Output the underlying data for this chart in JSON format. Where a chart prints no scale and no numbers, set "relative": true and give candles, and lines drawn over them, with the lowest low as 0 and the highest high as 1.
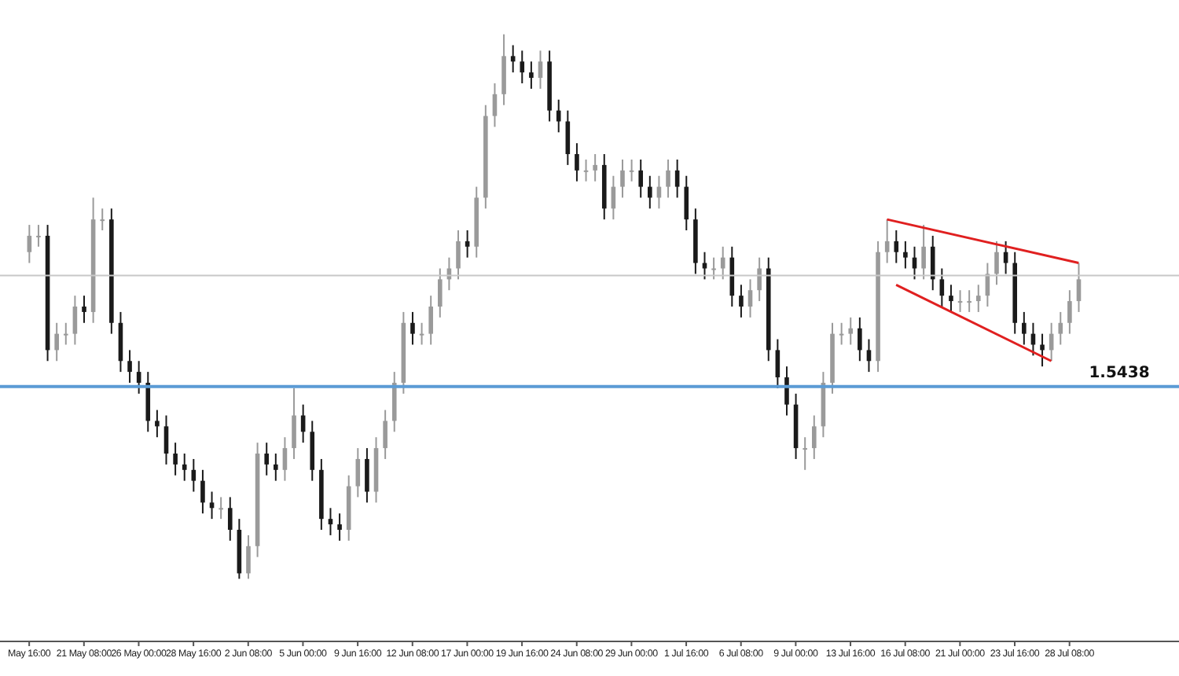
{
  "chart_data": {
    "type": "candlestick",
    "relative": true,
    "categories": [
      "May 16:00",
      null,
      null,
      null,
      null,
      null,
      "21 May 08:00",
      null,
      null,
      null,
      null,
      null,
      "26 May 00:00",
      null,
      null,
      null,
      null,
      null,
      "28 May 16:00",
      null,
      null,
      null,
      null,
      null,
      "2 Jun 08:00",
      null,
      null,
      null,
      null,
      null,
      "5 Jun 00:00",
      null,
      null,
      null,
      null,
      null,
      "9 Jun 16:00",
      null,
      null,
      null,
      null,
      null,
      "12 Jun 08:00",
      null,
      null,
      null,
      null,
      null,
      "17 Jun 00:00",
      null,
      null,
      null,
      null,
      null,
      "19 Jun 16:00",
      null,
      null,
      null,
      null,
      null,
      "24 Jun 08:00",
      null,
      null,
      null,
      null,
      null,
      "29 Jun 00:00",
      null,
      null,
      null,
      null,
      null,
      "1 Jul 16:00",
      null,
      null,
      null,
      null,
      null,
      "6 Jul 08:00",
      null,
      null,
      null,
      null,
      null,
      "9 Jul 00:00",
      null,
      null,
      null,
      null,
      null,
      "13 Jul 16:00",
      null,
      null,
      null,
      null,
      null,
      "16 Jul 08:00",
      null,
      null,
      null,
      null,
      null,
      "21 Jul 00:00",
      null,
      null,
      null,
      null,
      null,
      "23 Jul 16:00",
      null,
      null,
      null,
      null,
      null,
      "28 Jul 08:00",
      null
    ],
    "ohlc": [
      [
        0.6,
        0.65,
        0.58,
        0.63
      ],
      [
        0.63,
        0.65,
        0.61,
        0.63
      ],
      [
        0.63,
        0.65,
        0.4,
        0.42
      ],
      [
        0.42,
        0.47,
        0.4,
        0.45
      ],
      [
        0.45,
        0.47,
        0.43,
        0.45
      ],
      [
        0.45,
        0.52,
        0.43,
        0.5
      ],
      [
        0.5,
        0.52,
        0.47,
        0.49
      ],
      [
        0.49,
        0.7,
        0.47,
        0.66
      ],
      [
        0.66,
        0.68,
        0.64,
        0.66
      ],
      [
        0.66,
        0.68,
        0.45,
        0.47
      ],
      [
        0.47,
        0.49,
        0.38,
        0.4
      ],
      [
        0.4,
        0.42,
        0.36,
        0.38
      ],
      [
        0.38,
        0.4,
        0.34,
        0.36
      ],
      [
        0.36,
        0.38,
        0.27,
        0.29
      ],
      [
        0.29,
        0.31,
        0.26,
        0.28
      ],
      [
        0.28,
        0.3,
        0.21,
        0.23
      ],
      [
        0.23,
        0.25,
        0.19,
        0.21
      ],
      [
        0.21,
        0.23,
        0.18,
        0.2
      ],
      [
        0.2,
        0.22,
        0.16,
        0.18
      ],
      [
        0.18,
        0.2,
        0.12,
        0.14
      ],
      [
        0.14,
        0.16,
        0.11,
        0.13
      ],
      [
        0.13,
        0.15,
        0.11,
        0.13
      ],
      [
        0.13,
        0.15,
        0.07,
        0.09
      ],
      [
        0.09,
        0.11,
        0.0,
        0.01
      ],
      [
        0.01,
        0.08,
        0.0,
        0.06
      ],
      [
        0.06,
        0.25,
        0.04,
        0.23
      ],
      [
        0.23,
        0.25,
        0.19,
        0.21
      ],
      [
        0.21,
        0.23,
        0.18,
        0.2
      ],
      [
        0.2,
        0.26,
        0.18,
        0.24
      ],
      [
        0.24,
        0.35,
        0.22,
        0.3
      ],
      [
        0.3,
        0.32,
        0.25,
        0.27
      ],
      [
        0.27,
        0.29,
        0.18,
        0.2
      ],
      [
        0.2,
        0.22,
        0.09,
        0.11
      ],
      [
        0.11,
        0.13,
        0.08,
        0.1
      ],
      [
        0.1,
        0.12,
        0.07,
        0.09
      ],
      [
        0.09,
        0.19,
        0.07,
        0.17
      ],
      [
        0.17,
        0.24,
        0.15,
        0.22
      ],
      [
        0.22,
        0.24,
        0.14,
        0.16
      ],
      [
        0.16,
        0.26,
        0.14,
        0.24
      ],
      [
        0.24,
        0.31,
        0.22,
        0.29
      ],
      [
        0.29,
        0.38,
        0.27,
        0.36
      ],
      [
        0.36,
        0.49,
        0.34,
        0.47
      ],
      [
        0.47,
        0.49,
        0.43,
        0.45
      ],
      [
        0.45,
        0.47,
        0.43,
        0.45
      ],
      [
        0.45,
        0.52,
        0.43,
        0.5
      ],
      [
        0.5,
        0.57,
        0.48,
        0.55
      ],
      [
        0.55,
        0.59,
        0.53,
        0.57
      ],
      [
        0.57,
        0.64,
        0.55,
        0.62
      ],
      [
        0.62,
        0.64,
        0.59,
        0.61
      ],
      [
        0.61,
        0.72,
        0.59,
        0.7
      ],
      [
        0.7,
        0.87,
        0.68,
        0.85
      ],
      [
        0.85,
        0.91,
        0.83,
        0.89
      ],
      [
        0.89,
        1.0,
        0.87,
        0.96
      ],
      [
        0.96,
        0.98,
        0.93,
        0.95
      ],
      [
        0.95,
        0.97,
        0.91,
        0.93
      ],
      [
        0.93,
        0.95,
        0.9,
        0.92
      ],
      [
        0.92,
        0.97,
        0.9,
        0.95
      ],
      [
        0.95,
        0.97,
        0.84,
        0.86
      ],
      [
        0.86,
        0.88,
        0.82,
        0.84
      ],
      [
        0.84,
        0.86,
        0.76,
        0.78
      ],
      [
        0.78,
        0.8,
        0.73,
        0.75
      ],
      [
        0.75,
        0.77,
        0.73,
        0.75
      ],
      [
        0.75,
        0.78,
        0.73,
        0.76
      ],
      [
        0.76,
        0.78,
        0.66,
        0.68
      ],
      [
        0.68,
        0.74,
        0.66,
        0.72
      ],
      [
        0.72,
        0.77,
        0.7,
        0.75
      ],
      [
        0.75,
        0.77,
        0.73,
        0.75
      ],
      [
        0.75,
        0.77,
        0.7,
        0.72
      ],
      [
        0.72,
        0.74,
        0.68,
        0.7
      ],
      [
        0.7,
        0.74,
        0.68,
        0.72
      ],
      [
        0.72,
        0.77,
        0.7,
        0.75
      ],
      [
        0.75,
        0.77,
        0.7,
        0.72
      ],
      [
        0.72,
        0.74,
        0.64,
        0.66
      ],
      [
        0.66,
        0.68,
        0.56,
        0.58
      ],
      [
        0.58,
        0.6,
        0.55,
        0.57
      ],
      [
        0.57,
        0.59,
        0.55,
        0.57
      ],
      [
        0.57,
        0.61,
        0.55,
        0.59
      ],
      [
        0.59,
        0.61,
        0.5,
        0.52
      ],
      [
        0.52,
        0.54,
        0.48,
        0.5
      ],
      [
        0.5,
        0.55,
        0.48,
        0.53
      ],
      [
        0.53,
        0.59,
        0.51,
        0.57
      ],
      [
        0.57,
        0.59,
        0.4,
        0.42
      ],
      [
        0.42,
        0.44,
        0.35,
        0.37
      ],
      [
        0.37,
        0.39,
        0.3,
        0.32
      ],
      [
        0.32,
        0.34,
        0.22,
        0.24
      ],
      [
        0.24,
        0.26,
        0.2,
        0.24
      ],
      [
        0.24,
        0.3,
        0.22,
        0.28
      ],
      [
        0.28,
        0.38,
        0.26,
        0.36
      ],
      [
        0.36,
        0.47,
        0.34,
        0.45
      ],
      [
        0.45,
        0.47,
        0.43,
        0.45
      ],
      [
        0.45,
        0.48,
        0.43,
        0.46
      ],
      [
        0.46,
        0.48,
        0.4,
        0.42
      ],
      [
        0.42,
        0.44,
        0.38,
        0.4
      ],
      [
        0.4,
        0.62,
        0.38,
        0.6
      ],
      [
        0.6,
        0.66,
        0.58,
        0.62
      ],
      [
        0.62,
        0.64,
        0.58,
        0.6
      ],
      [
        0.6,
        0.62,
        0.57,
        0.59
      ],
      [
        0.59,
        0.61,
        0.55,
        0.57
      ],
      [
        0.57,
        0.65,
        0.55,
        0.61
      ],
      [
        0.61,
        0.63,
        0.53,
        0.55
      ],
      [
        0.55,
        0.57,
        0.5,
        0.52
      ],
      [
        0.52,
        0.54,
        0.49,
        0.51
      ],
      [
        0.51,
        0.53,
        0.49,
        0.51
      ],
      [
        0.51,
        0.53,
        0.49,
        0.51
      ],
      [
        0.51,
        0.54,
        0.49,
        0.52
      ],
      [
        0.52,
        0.58,
        0.5,
        0.56
      ],
      [
        0.56,
        0.62,
        0.54,
        0.6
      ],
      [
        0.6,
        0.62,
        0.56,
        0.58
      ],
      [
        0.58,
        0.6,
        0.45,
        0.47
      ],
      [
        0.47,
        0.49,
        0.43,
        0.45
      ],
      [
        0.45,
        0.47,
        0.41,
        0.43
      ],
      [
        0.43,
        0.45,
        0.39,
        0.42
      ],
      [
        0.42,
        0.47,
        0.4,
        0.45
      ],
      [
        0.45,
        0.49,
        0.43,
        0.47
      ],
      [
        0.47,
        0.53,
        0.45,
        0.51
      ],
      [
        0.51,
        0.58,
        0.49,
        0.55
      ]
    ],
    "series": [
      {
        "type": "line",
        "color": "#e02020",
        "values": [
          null,
          null,
          null,
          null,
          null,
          null,
          null,
          null,
          null,
          null,
          null,
          null,
          null,
          null,
          null,
          null,
          null,
          null,
          null,
          null,
          null,
          null,
          null,
          null,
          null,
          null,
          null,
          null,
          null,
          null,
          null,
          null,
          null,
          null,
          null,
          null,
          null,
          null,
          null,
          null,
          null,
          null,
          null,
          null,
          null,
          null,
          null,
          null,
          null,
          null,
          null,
          null,
          null,
          null,
          null,
          null,
          null,
          null,
          null,
          null,
          null,
          null,
          null,
          null,
          null,
          null,
          null,
          null,
          null,
          null,
          null,
          null,
          null,
          null,
          null,
          null,
          null,
          null,
          null,
          null,
          null,
          null,
          null,
          null,
          null,
          null,
          null,
          null,
          null,
          null,
          null,
          null,
          null,
          null,
          0.66,
          null,
          null,
          null,
          null,
          null,
          null,
          null,
          null,
          null,
          null,
          null,
          null,
          null,
          null,
          null,
          null,
          null,
          null,
          null,
          null,
          0.58
        ]
      },
      {
        "type": "line",
        "color": "#e02020",
        "values": [
          null,
          null,
          null,
          null,
          null,
          null,
          null,
          null,
          null,
          null,
          null,
          null,
          null,
          null,
          null,
          null,
          null,
          null,
          null,
          null,
          null,
          null,
          null,
          null,
          null,
          null,
          null,
          null,
          null,
          null,
          null,
          null,
          null,
          null,
          null,
          null,
          null,
          null,
          null,
          null,
          null,
          null,
          null,
          null,
          null,
          null,
          null,
          null,
          null,
          null,
          null,
          null,
          null,
          null,
          null,
          null,
          null,
          null,
          null,
          null,
          null,
          null,
          null,
          null,
          null,
          null,
          null,
          null,
          null,
          null,
          null,
          null,
          null,
          null,
          null,
          null,
          null,
          null,
          null,
          null,
          null,
          null,
          null,
          null,
          null,
          null,
          null,
          null,
          null,
          null,
          null,
          null,
          null,
          null,
          null,
          0.54,
          null,
          null,
          null,
          null,
          null,
          null,
          null,
          null,
          null,
          null,
          null,
          null,
          null,
          null,
          null,
          null,
          0.4,
          null,
          null,
          null
        ]
      }
    ],
    "annotations": [
      "1.5438"
    ],
    "ref_lines": [
      {
        "axis": "y",
        "value": 0.353,
        "color": "#5b9bd5"
      },
      {
        "axis": "y",
        "value": 0.557,
        "color": "#c8c8c8"
      }
    ]
  }
}
